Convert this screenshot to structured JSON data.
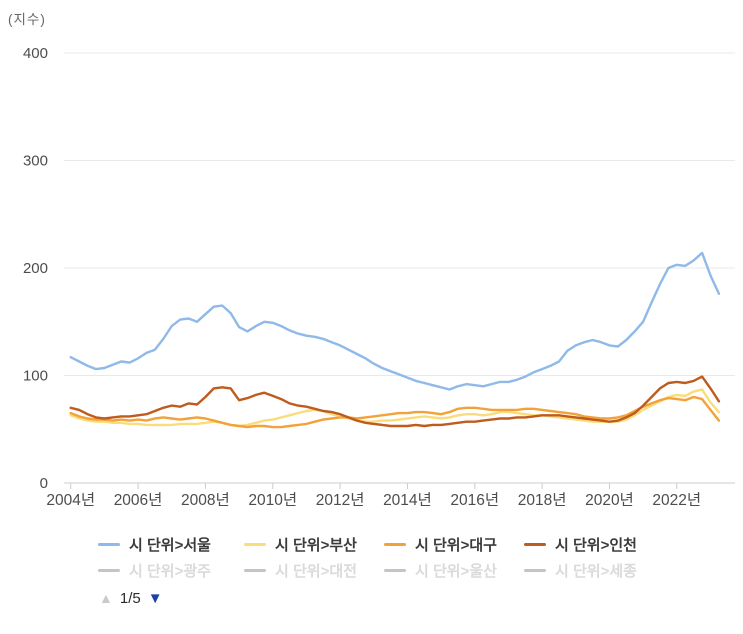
{
  "chart_data": {
    "type": "line",
    "title": "",
    "unit_label": "(지수)",
    "xlabel": "",
    "ylabel": "지수",
    "grid": "horizontal",
    "legend_position": "bottom",
    "y_axis": {
      "max": 400,
      "min": 0,
      "ticks": [
        0,
        100,
        200,
        300,
        400
      ]
    },
    "x_axis": {
      "domain": [
        2003.8,
        2023.55
      ],
      "ticks": [
        {
          "value": 2004,
          "label": "2004년"
        },
        {
          "value": 2006,
          "label": "2006년"
        },
        {
          "value": 2008,
          "label": "2008년"
        },
        {
          "value": 2010,
          "label": "2010년"
        },
        {
          "value": 2012,
          "label": "2012년"
        },
        {
          "value": 2014,
          "label": "2014년"
        },
        {
          "value": 2016,
          "label": "2016년"
        },
        {
          "value": 2018,
          "label": "2018년"
        },
        {
          "value": 2020,
          "label": "2020년"
        },
        {
          "value": 2022,
          "label": "2022년"
        }
      ]
    },
    "x_start": 2004.0,
    "x_step": 0.25,
    "series": [
      {
        "id": "seoul",
        "name": "시 단위>서울",
        "color": "#8fb9e8",
        "values": [
          117,
          113,
          109,
          106,
          107,
          110,
          113,
          112,
          116,
          121,
          124,
          134,
          146,
          152,
          153,
          150,
          157,
          164,
          165,
          158,
          145,
          141,
          146,
          150,
          149,
          146,
          142,
          139,
          137,
          136,
          134,
          131,
          128,
          124,
          120,
          116,
          111,
          107,
          104,
          101,
          98,
          95,
          93,
          91,
          89,
          87,
          90,
          92,
          91,
          90,
          92,
          94,
          94,
          96,
          99,
          103,
          106,
          109,
          113,
          123,
          128,
          131,
          133,
          131,
          128,
          127,
          133,
          141,
          150,
          168,
          185,
          200,
          203,
          202,
          207,
          214,
          193,
          176
        ]
      },
      {
        "id": "busan",
        "name": "시 단위>부산",
        "color": "#fbdc7a",
        "values": [
          63,
          60,
          58,
          57,
          57,
          56,
          56,
          55,
          55,
          54,
          54,
          54,
          54,
          55,
          55,
          55,
          56,
          57,
          56,
          54,
          53,
          54,
          56,
          58,
          59,
          61,
          63,
          65,
          67,
          68,
          67,
          64,
          62,
          60,
          58,
          57,
          57,
          58,
          58,
          59,
          60,
          61,
          62,
          61,
          60,
          61,
          63,
          64,
          64,
          63,
          64,
          66,
          66,
          65,
          64,
          63,
          63,
          62,
          61,
          60,
          59,
          58,
          57,
          57,
          57,
          57,
          59,
          63,
          68,
          72,
          76,
          80,
          82,
          81,
          85,
          87,
          75,
          66
        ]
      },
      {
        "id": "daegu",
        "name": "시 단위>대구",
        "color": "#f2a239",
        "values": [
          65,
          62,
          60,
          59,
          59,
          58,
          59,
          58,
          59,
          58,
          60,
          61,
          60,
          59,
          60,
          61,
          60,
          58,
          56,
          54,
          53,
          52,
          53,
          53,
          52,
          52,
          53,
          54,
          55,
          57,
          59,
          60,
          61,
          61,
          60,
          61,
          62,
          63,
          64,
          65,
          65,
          66,
          66,
          65,
          64,
          66,
          69,
          70,
          70,
          69,
          68,
          68,
          68,
          68,
          69,
          69,
          68,
          67,
          66,
          65,
          64,
          62,
          61,
          60,
          60,
          61,
          63,
          67,
          71,
          74,
          77,
          79,
          78,
          77,
          80,
          78,
          68,
          58
        ]
      },
      {
        "id": "incheon",
        "name": "시 단위>인천",
        "color": "#be5b1d",
        "values": [
          70,
          68,
          64,
          61,
          60,
          61,
          62,
          62,
          63,
          64,
          67,
          70,
          72,
          71,
          74,
          73,
          80,
          88,
          89,
          88,
          77,
          79,
          82,
          84,
          81,
          78,
          74,
          72,
          71,
          69,
          67,
          66,
          64,
          61,
          58,
          56,
          55,
          54,
          53,
          53,
          53,
          54,
          53,
          54,
          54,
          55,
          56,
          57,
          57,
          58,
          59,
          60,
          60,
          61,
          61,
          62,
          63,
          63,
          63,
          62,
          61,
          60,
          59,
          58,
          57,
          58,
          61,
          65,
          72,
          80,
          88,
          93,
          94,
          93,
          95,
          99,
          88,
          76
        ]
      }
    ]
  },
  "legend": {
    "items": [
      {
        "label": "시 단위>서울",
        "color": "#8fb9e8",
        "active": true
      },
      {
        "label": "시 단위>부산",
        "color": "#fbdc7a",
        "active": true
      },
      {
        "label": "시 단위>대구",
        "color": "#f2a239",
        "active": true
      },
      {
        "label": "시 단위>인천",
        "color": "#be5b1d",
        "active": true
      },
      {
        "label": "시 단위>광주",
        "color": "#c4c4c4",
        "active": false
      },
      {
        "label": "시 단위>대전",
        "color": "#c4c4c4",
        "active": false
      },
      {
        "label": "시 단위>울산",
        "color": "#c4c4c4",
        "active": false
      },
      {
        "label": "시 단위>세종",
        "color": "#c4c4c4",
        "active": false
      }
    ]
  },
  "pagination": {
    "up_icon": "▲",
    "label": "1/5",
    "down_icon": "▼",
    "up_color": "#c7c9cc",
    "down_color": "#1c3fae"
  }
}
